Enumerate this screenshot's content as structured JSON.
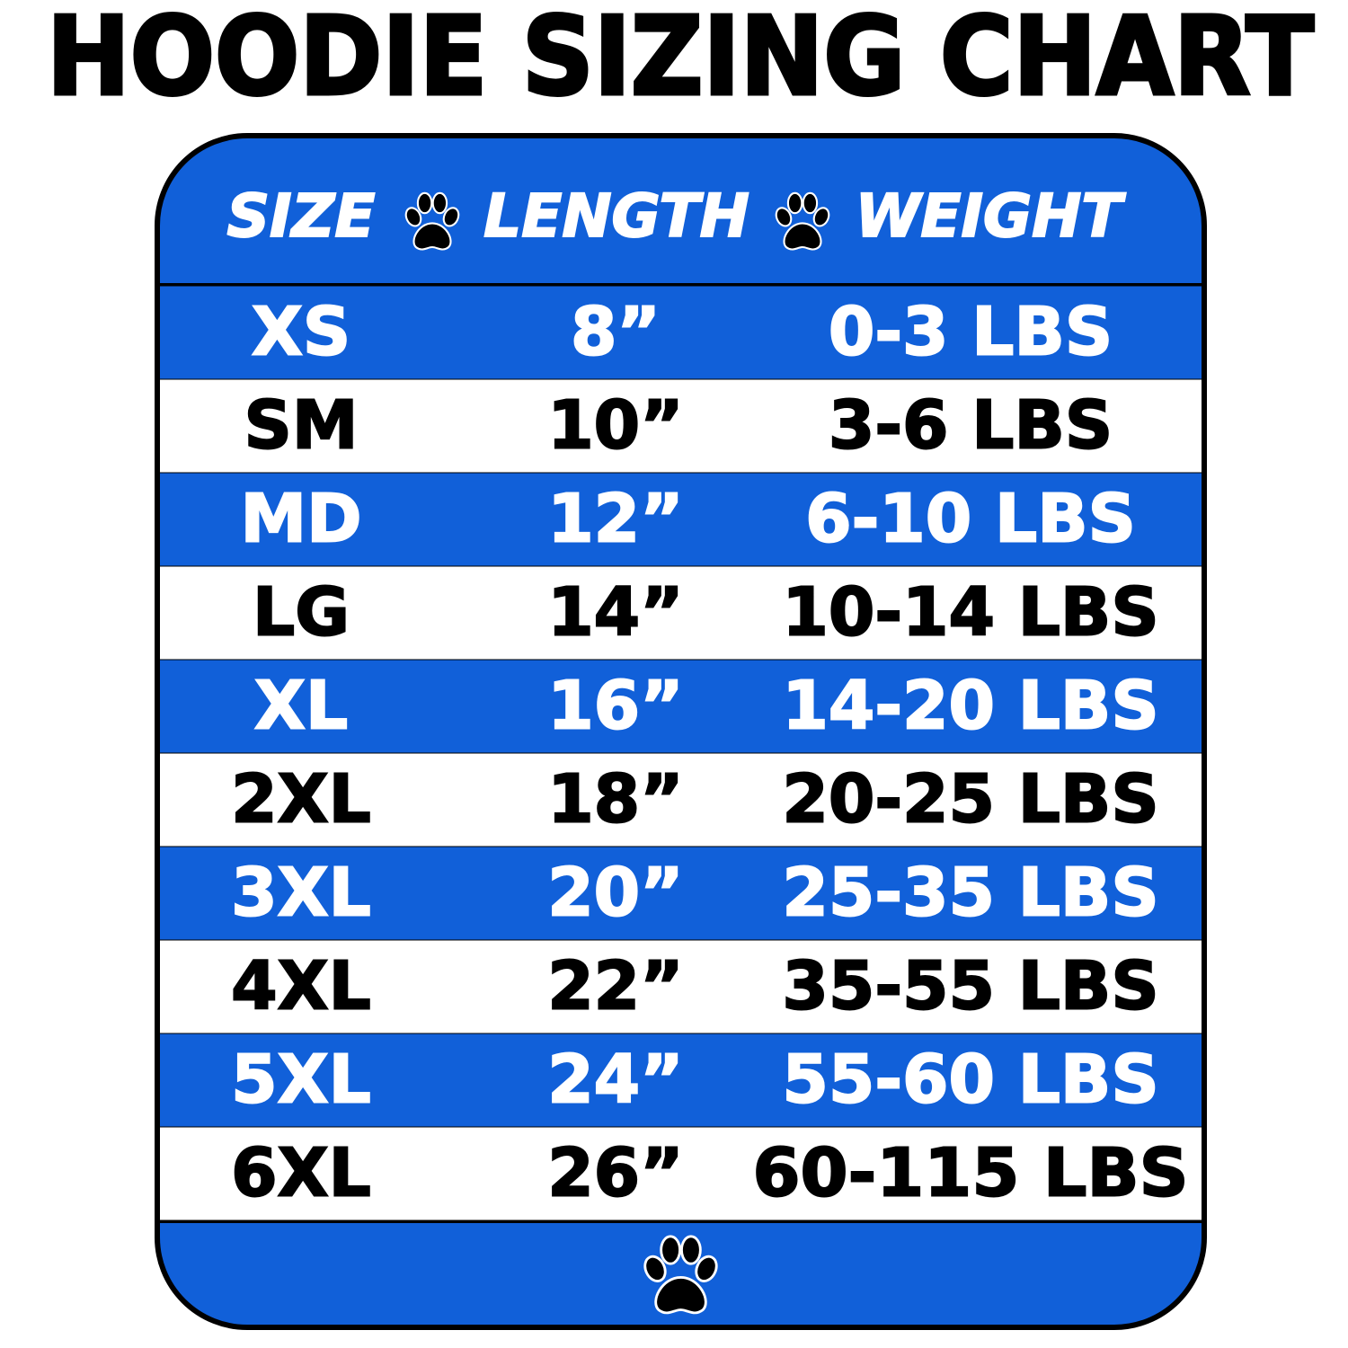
{
  "title": "HOODIE SIZING CHART",
  "table": {
    "header": [
      "SIZE",
      "LENGTH",
      "WEIGHT"
    ],
    "rows": [
      [
        "XS",
        "8”",
        "0-3 LBS"
      ],
      [
        "SM",
        "10”",
        "3-6 LBS"
      ],
      [
        "MD",
        "12”",
        "6-10 LBS"
      ],
      [
        "LG",
        "14”",
        "10-14 LBS"
      ],
      [
        "XL",
        "16”",
        "14-20 LBS"
      ],
      [
        "2XL",
        "18”",
        "20-25 LBS"
      ],
      [
        "3XL",
        "20”",
        "25-35 LBS"
      ],
      [
        "4XL",
        "22”",
        "35-55 LBS"
      ],
      [
        "5XL",
        "24”",
        "55-60 LBS"
      ],
      [
        "6XL",
        "26”",
        "60-115 LBS"
      ]
    ]
  }
}
